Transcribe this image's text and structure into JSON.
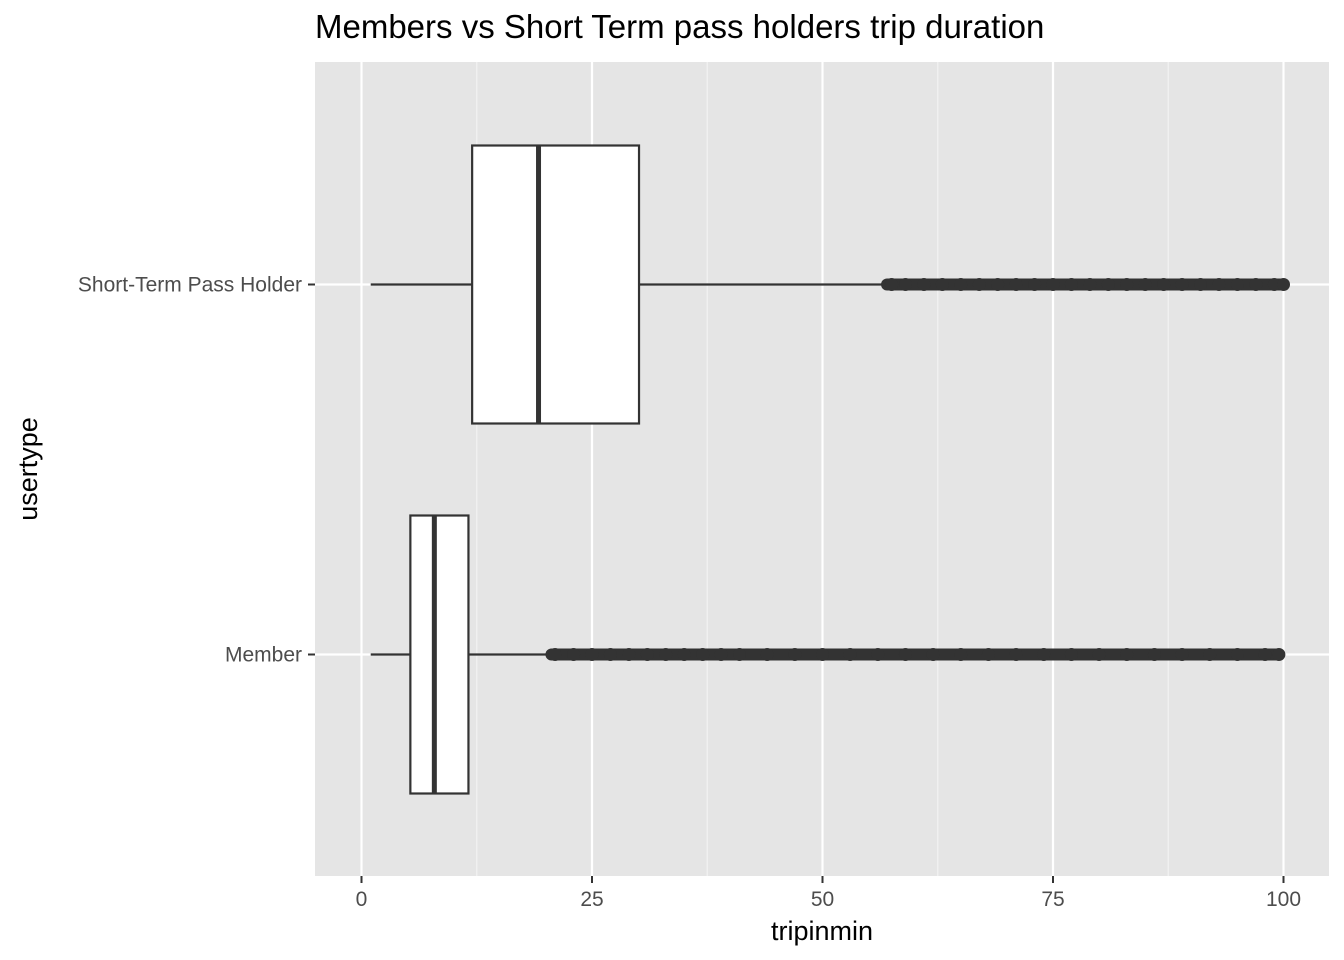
{
  "chart_data": {
    "type": "boxplot",
    "orientation": "horizontal",
    "title": "Members vs Short Term pass holders trip duration",
    "xlabel": "tripinmin",
    "ylabel": "usertype",
    "xlim": [
      -10,
      104
    ],
    "x_ticks": [
      0,
      25,
      50,
      75,
      100
    ],
    "grid": true,
    "background": "#e5e5e5",
    "categories": [
      "Short-Term Pass Holder",
      "Member"
    ],
    "series": [
      {
        "category": "Short-Term Pass Holder",
        "whisker_low": 1,
        "q1": 12,
        "median": 19.2,
        "q3": 30.1,
        "whisker_high": 57,
        "outliers_range": [
          57,
          100
        ],
        "outliers": [
          57.5,
          59,
          61,
          63,
          65,
          67,
          69,
          71,
          73,
          75,
          77,
          79,
          81,
          83,
          85,
          87,
          89,
          91,
          93,
          95,
          97,
          99,
          100
        ]
      },
      {
        "category": "Member",
        "whisker_low": 1,
        "q1": 5.3,
        "median": 7.9,
        "q3": 11.6,
        "whisker_high": 20.6,
        "outliers_range": [
          20.6,
          99.5
        ],
        "outliers": [
          21,
          23,
          25,
          27,
          29,
          31,
          33,
          35,
          37,
          39,
          41,
          44,
          47,
          50,
          53,
          56,
          59,
          62,
          65,
          68,
          71,
          74,
          77,
          80,
          83,
          86,
          89,
          92,
          95,
          98,
          99.5
        ]
      }
    ]
  }
}
